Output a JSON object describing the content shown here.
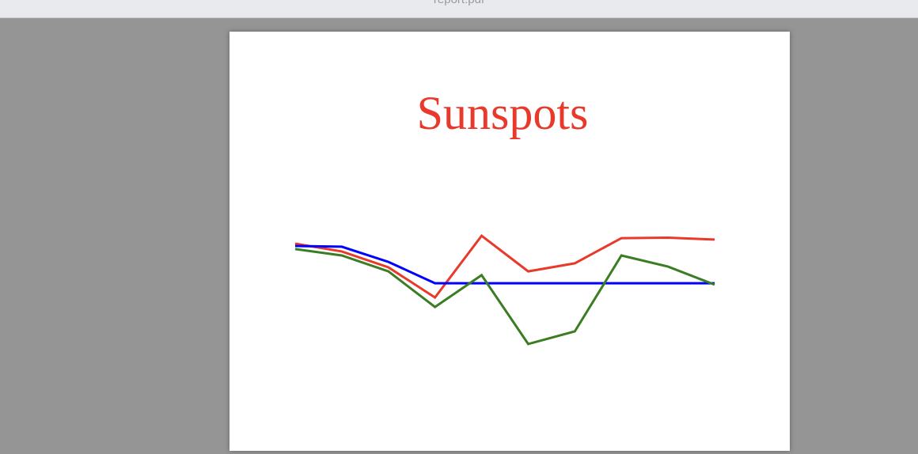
{
  "window": {
    "title": "report.pdf"
  },
  "chart_data": {
    "type": "line",
    "title": "Sunspots",
    "categories": [
      null,
      null,
      null,
      null,
      null,
      null,
      null,
      null,
      null,
      null
    ],
    "ylim": [
      0,
      100
    ],
    "series": [
      {
        "name": null,
        "color": "#e8392b",
        "values": [
          64,
          60.7,
          54,
          41.3,
          67.3,
          52.3,
          55.7,
          66.3,
          66.5,
          65.7
        ]
      },
      {
        "name": null,
        "color": "#0000ff",
        "values": [
          63,
          62.7,
          56.3,
          47.3,
          47.3,
          47.3,
          47.3,
          47.3,
          47.3,
          47.3
        ]
      },
      {
        "name": null,
        "color": "#3a7d22",
        "values": [
          61.7,
          59,
          52.3,
          37.3,
          50.7,
          21.7,
          27,
          59,
          54.3,
          46.7
        ]
      }
    ]
  }
}
